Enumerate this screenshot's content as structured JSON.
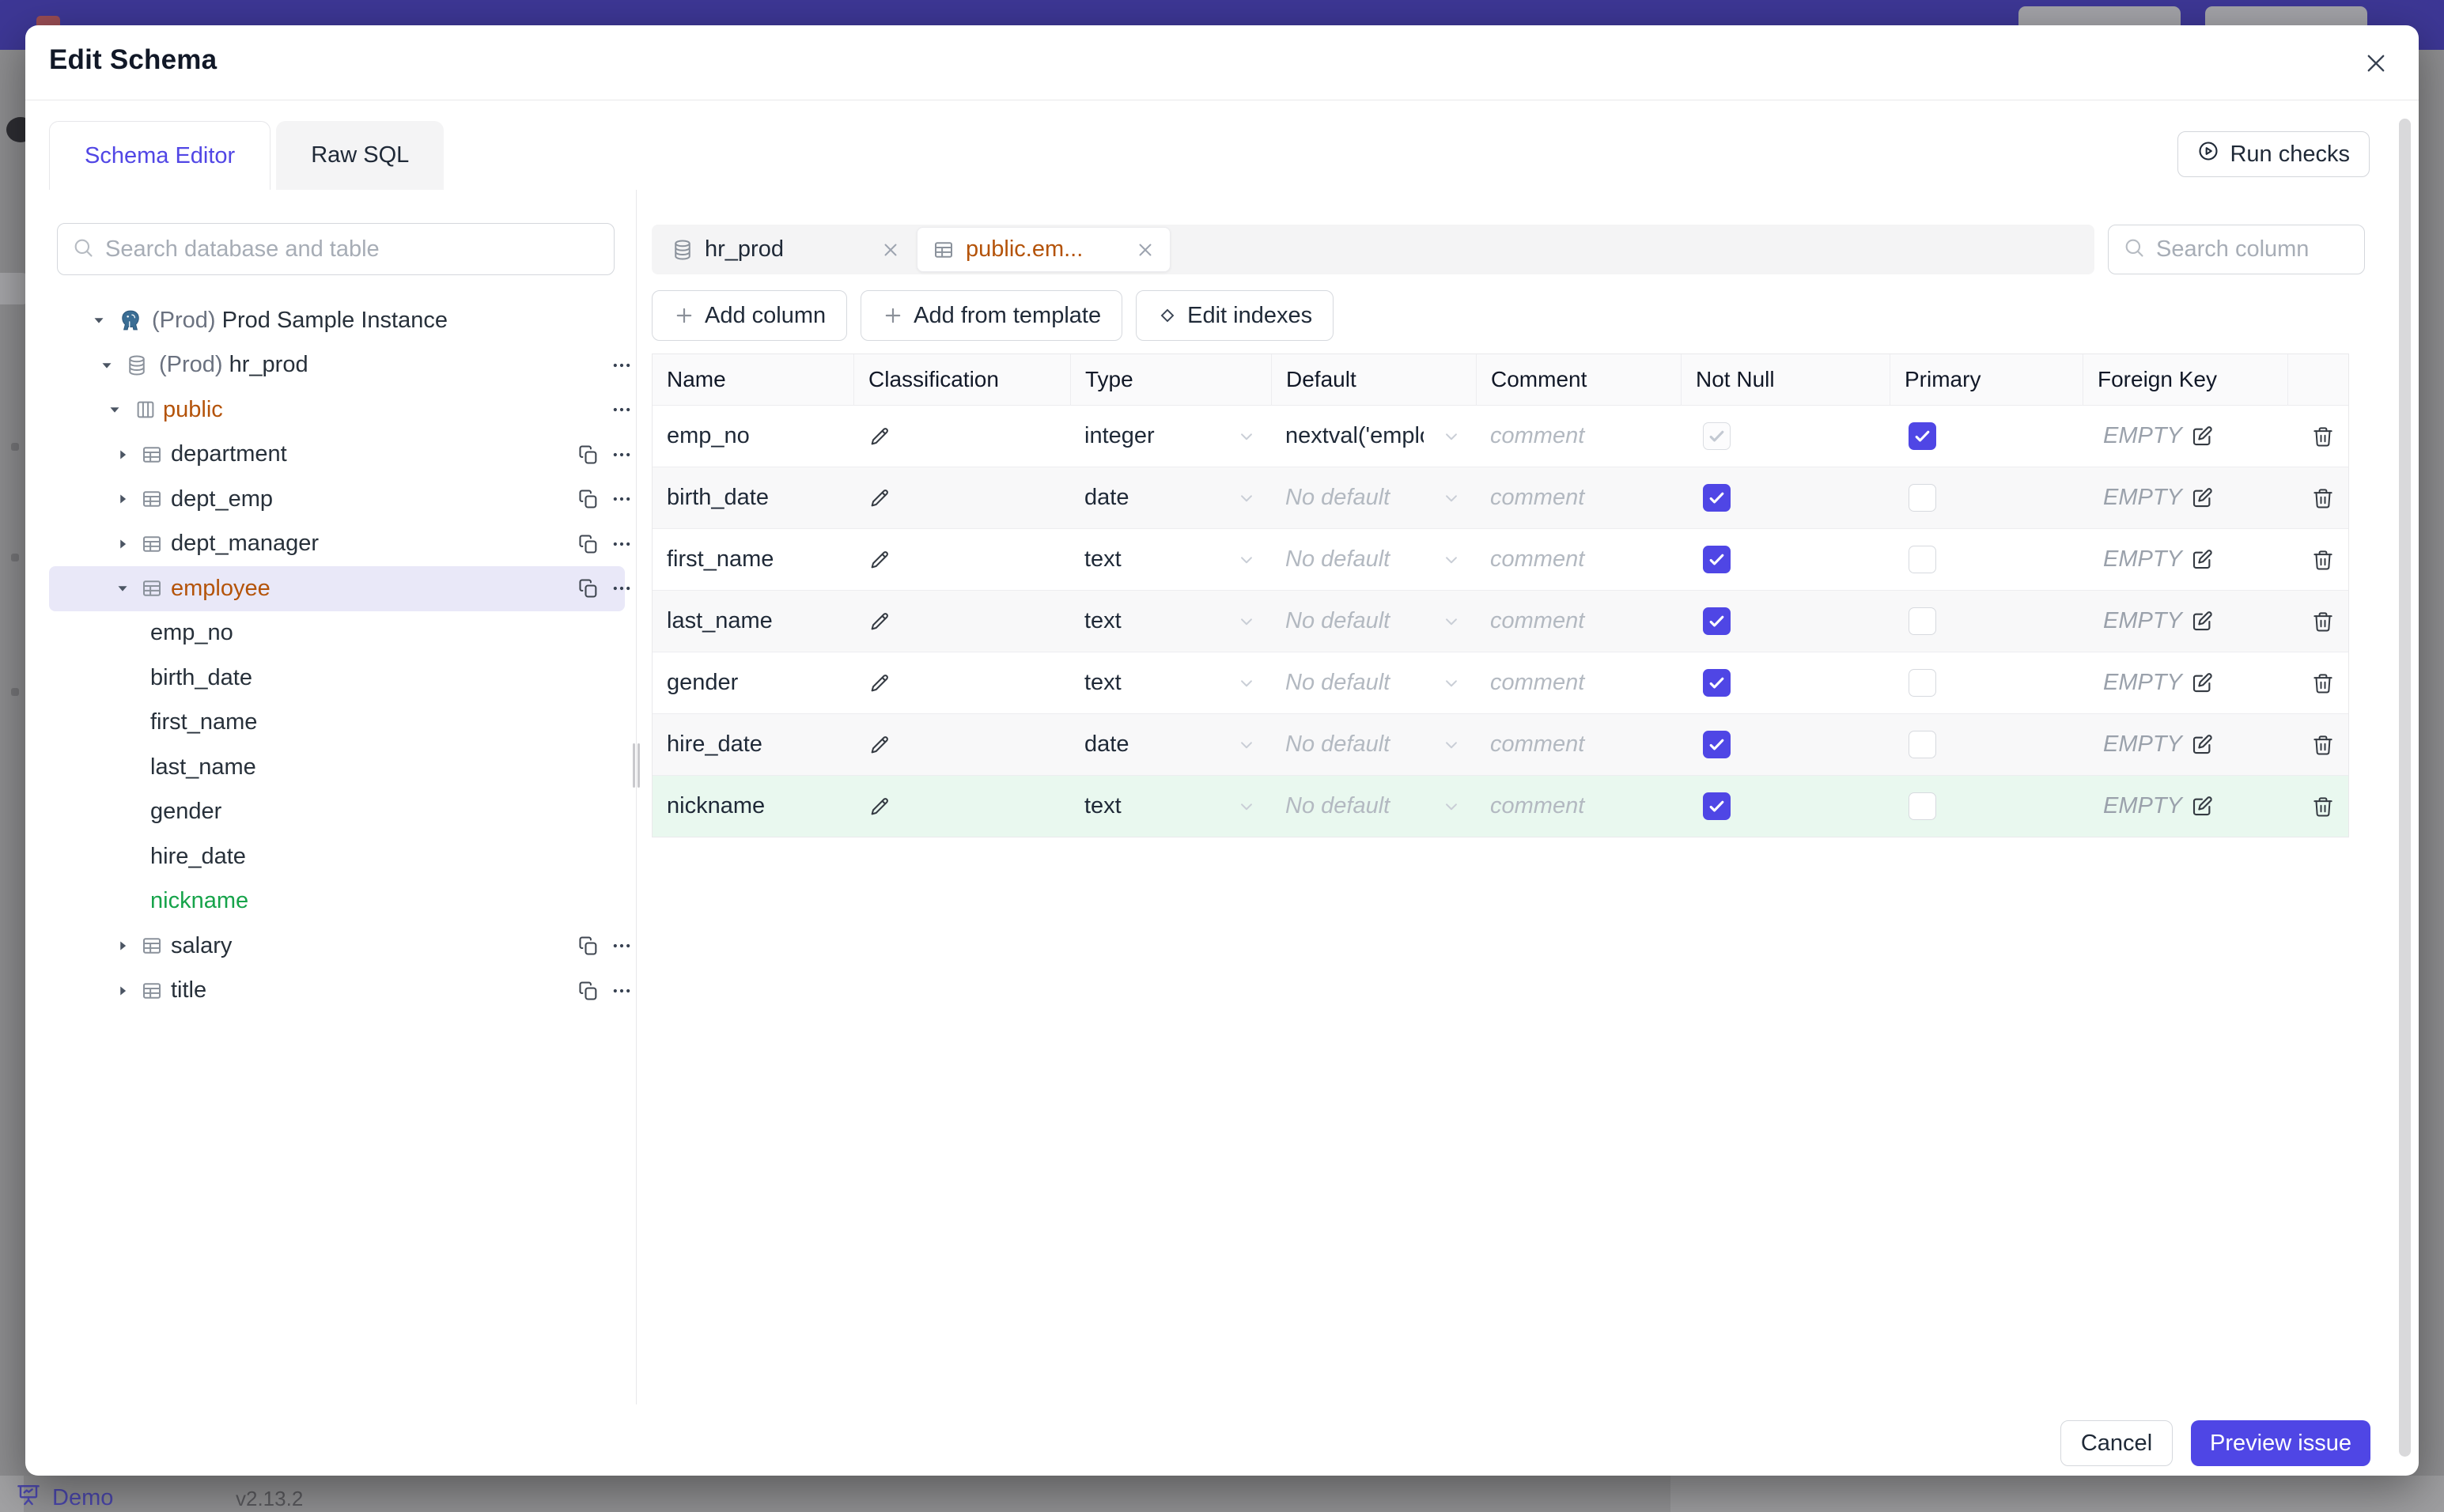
{
  "dialog": {
    "title": "Edit Schema"
  },
  "view_tabs": [
    {
      "label": "Schema Editor",
      "active": true
    },
    {
      "label": "Raw SQL",
      "active": false
    }
  ],
  "run_checks": {
    "label": "Run checks"
  },
  "sidebar": {
    "search_placeholder": "Search database and table",
    "tree": [
      {
        "prefix": "(Prod) ",
        "label": "Prod Sample Instance",
        "type": "instance",
        "level": 0,
        "caret": "down",
        "icon": "postgres-icon"
      },
      {
        "prefix": "(Prod) ",
        "label": "hr_prod",
        "type": "database",
        "level": 1,
        "caret": "down",
        "icon": "database-icon",
        "ellipsis": true
      },
      {
        "label": "public",
        "type": "schema",
        "level": 2,
        "caret": "down",
        "icon": "schema-icon",
        "color": "amber",
        "ellipsis": true
      },
      {
        "label": "department",
        "type": "table",
        "level": 3,
        "caret": "right",
        "icon": "table-icon",
        "copy": true,
        "ellipsis": true
      },
      {
        "label": "dept_emp",
        "type": "table",
        "level": 3,
        "caret": "right",
        "icon": "table-icon",
        "copy": true,
        "ellipsis": true
      },
      {
        "label": "dept_manager",
        "type": "table",
        "level": 3,
        "caret": "right",
        "icon": "table-icon",
        "copy": true,
        "ellipsis": true
      },
      {
        "label": "employee",
        "type": "table",
        "level": 3,
        "caret": "down",
        "icon": "table-icon",
        "color": "amber",
        "selected": true,
        "copy": true,
        "ellipsis": true
      },
      {
        "label": "emp_no",
        "type": "column",
        "level": 4
      },
      {
        "label": "birth_date",
        "type": "column",
        "level": 4
      },
      {
        "label": "first_name",
        "type": "column",
        "level": 4
      },
      {
        "label": "last_name",
        "type": "column",
        "level": 4
      },
      {
        "label": "gender",
        "type": "column",
        "level": 4
      },
      {
        "label": "hire_date",
        "type": "column",
        "level": 4
      },
      {
        "label": "nickname",
        "type": "column",
        "level": 4,
        "color": "green"
      },
      {
        "label": "salary",
        "type": "table",
        "level": 3,
        "caret": "right",
        "icon": "table-icon",
        "copy": true,
        "ellipsis": true
      },
      {
        "label": "title",
        "type": "table",
        "level": 3,
        "caret": "right",
        "icon": "table-icon",
        "copy": true,
        "ellipsis": true
      }
    ]
  },
  "editor": {
    "tabs": [
      {
        "label": "hr_prod",
        "icon": "database-icon",
        "active": false
      },
      {
        "label": "public.em...",
        "icon": "table-icon",
        "active": true,
        "color": "amber"
      }
    ],
    "actions": [
      {
        "label": "Add column",
        "icon": "plus-icon"
      },
      {
        "label": "Add from template",
        "icon": "plus-icon"
      },
      {
        "label": "Edit indexes",
        "icon": "diamond-icon"
      }
    ],
    "search_placeholder": "Search column"
  },
  "table": {
    "headers": [
      "Name",
      "Classification",
      "Type",
      "Default",
      "Comment",
      "Not Null",
      "Primary",
      "Foreign Key",
      ""
    ],
    "comment_placeholder": "comment",
    "fk_placeholder": "EMPTY",
    "no_default_placeholder": "No default",
    "rows": [
      {
        "name": "emp_no",
        "type": "integer",
        "default_value": "nextval('employ",
        "has_default": true,
        "not_null_checked": true,
        "not_null_disabled": true,
        "primary_checked": true,
        "highlight": null
      },
      {
        "name": "birth_date",
        "type": "date",
        "default_value": "",
        "has_default": false,
        "not_null_checked": true,
        "not_null_disabled": false,
        "primary_checked": false,
        "highlight": null
      },
      {
        "name": "first_name",
        "type": "text",
        "default_value": "",
        "has_default": false,
        "not_null_checked": true,
        "not_null_disabled": false,
        "primary_checked": false,
        "highlight": null
      },
      {
        "name": "last_name",
        "type": "text",
        "default_value": "",
        "has_default": false,
        "not_null_checked": true,
        "not_null_disabled": false,
        "primary_checked": false,
        "highlight": null
      },
      {
        "name": "gender",
        "type": "text",
        "default_value": "",
        "has_default": false,
        "not_null_checked": true,
        "not_null_disabled": false,
        "primary_checked": false,
        "highlight": null
      },
      {
        "name": "hire_date",
        "type": "date",
        "default_value": "",
        "has_default": false,
        "not_null_checked": true,
        "not_null_disabled": false,
        "primary_checked": false,
        "highlight": null
      },
      {
        "name": "nickname",
        "type": "text",
        "default_value": "",
        "has_default": false,
        "not_null_checked": true,
        "not_null_disabled": false,
        "primary_checked": false,
        "highlight": "new"
      }
    ]
  },
  "footer": {
    "cancel_label": "Cancel",
    "primary_label": "Preview issue"
  },
  "backdrop": {
    "demo_label": "Demo",
    "version": "v2.13.2"
  },
  "colors": {
    "accent": "#4f46e5",
    "amber": "#b45309",
    "green": "#16a34a",
    "green_row_bg": "#e9f8ef",
    "selected_bg": "#e9e8f8",
    "topbar": "#3d3795"
  }
}
